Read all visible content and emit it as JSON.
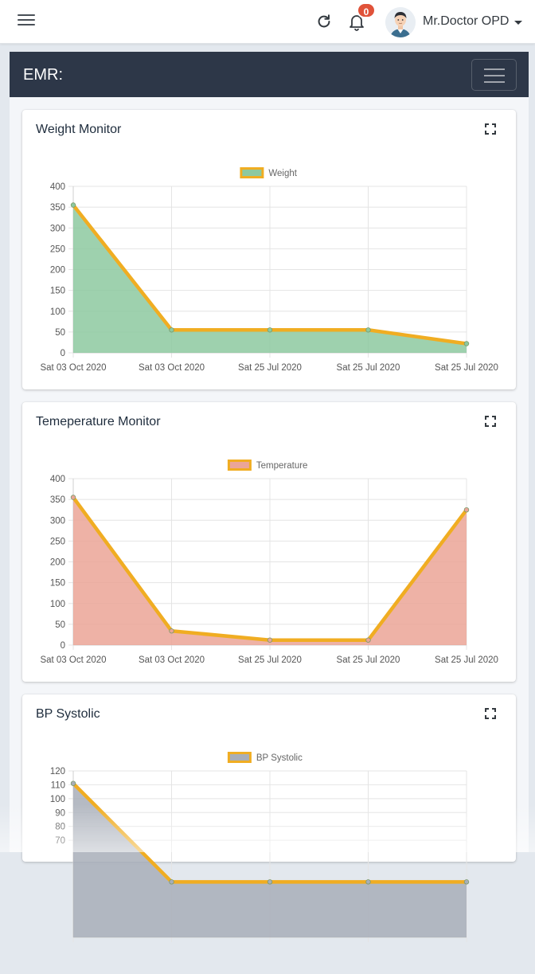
{
  "topbar": {
    "user_name": "Mr.Doctor OPD",
    "notification_count": "0"
  },
  "emr": {
    "title": "EMR:"
  },
  "colors": {
    "line": "#f0ad22",
    "weight_fill": "#8dc9a0",
    "temperature_fill": "#eba597",
    "bp_fill": "#a8aeb8"
  },
  "cards": [
    {
      "title": "Weight Monitor"
    },
    {
      "title": "Temeperature Monitor"
    },
    {
      "title": "BP Systolic"
    }
  ],
  "chart_data": [
    {
      "type": "area",
      "title": "",
      "legend": {
        "label": "Weight",
        "position": "top"
      },
      "categories": [
        "Sat 03 Oct 2020",
        "Sat 03 Oct 2020",
        "Sat 25 Jul 2020",
        "Sat 25 Jul 2020",
        "Sat 25 Jul 2020"
      ],
      "series": [
        {
          "name": "Weight",
          "values": [
            355,
            55,
            55,
            55,
            22
          ]
        }
      ],
      "yticks": [
        0,
        50,
        100,
        150,
        200,
        250,
        300,
        350,
        400
      ],
      "ylim": [
        0,
        400
      ],
      "grid": true,
      "line_color": "#f0ad22",
      "fill_color": "#8dc9a0"
    },
    {
      "type": "area",
      "title": "",
      "legend": {
        "label": "Temperature",
        "position": "top"
      },
      "categories": [
        "Sat 03 Oct 2020",
        "Sat 03 Oct 2020",
        "Sat 25 Jul 2020",
        "Sat 25 Jul 2020",
        "Sat 25 Jul 2020"
      ],
      "series": [
        {
          "name": "Temperature",
          "values": [
            355,
            34,
            12,
            12,
            325
          ]
        }
      ],
      "yticks": [
        0,
        50,
        100,
        150,
        200,
        250,
        300,
        350,
        400
      ],
      "ylim": [
        0,
        400
      ],
      "grid": true,
      "line_color": "#f0ad22",
      "fill_color": "#eba597"
    },
    {
      "type": "area",
      "title": "",
      "legend": {
        "label": "BP Systolic",
        "position": "top"
      },
      "categories": [
        "",
        "",
        "",
        "",
        ""
      ],
      "series": [
        {
          "name": "BP Systolic",
          "values": [
            111,
            40,
            40,
            40,
            40
          ]
        }
      ],
      "yticks": [
        70,
        80,
        90,
        100,
        110,
        120
      ],
      "ylim": [
        0,
        120
      ],
      "grid": true,
      "line_color": "#f0ad22",
      "fill_color": "#a8aeb8"
    }
  ]
}
